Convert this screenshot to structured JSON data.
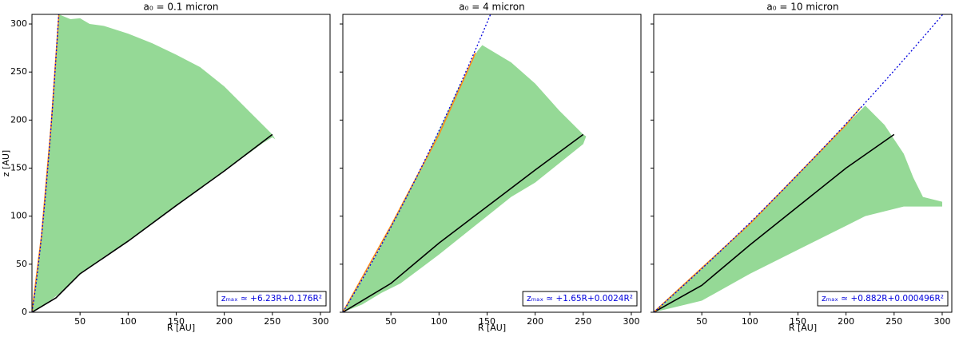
{
  "chart_data": [
    {
      "type": "region",
      "title": "a₀ = 0.1 micron",
      "xlabel": "R [AU]",
      "ylabel": "z [AU]",
      "show_ytick_labels": true,
      "xlim": [
        0,
        310
      ],
      "ylim": [
        0,
        310
      ],
      "xticks": [
        50,
        100,
        150,
        200,
        250,
        300
      ],
      "yticks": [
        0,
        50,
        100,
        150,
        200,
        250,
        300
      ],
      "region": {
        "color": "#95d996",
        "x": [
          0,
          10,
          20,
          28,
          40,
          50,
          60,
          75,
          100,
          125,
          150,
          175,
          200,
          225,
          240,
          250,
          253
        ],
        "upper": [
          0,
          80,
          195,
          310,
          305,
          306,
          300,
          298,
          290,
          280,
          268,
          255,
          235,
          210,
          195,
          185,
          180
        ],
        "lower": [
          0,
          6,
          13,
          19,
          30,
          40,
          47,
          58,
          74,
          93,
          111,
          129,
          147,
          165,
          176,
          182,
          180
        ]
      },
      "lines": [
        {
          "color": "#000000",
          "x": [
            0,
            25,
            50,
            75,
            100,
            150,
            200,
            250
          ],
          "values": [
            0,
            15,
            40,
            57,
            74,
            111,
            147,
            185
          ]
        },
        {
          "color": "#ff8c1a",
          "x": [
            0,
            10,
            20,
            28
          ],
          "values": [
            0,
            80,
            195,
            310
          ]
        }
      ],
      "fit": {
        "label": "zₘₐₓ ≃ +6.23R+0.176R²",
        "coefficients": [
          6.23,
          0.176
        ],
        "color": "#0000dd"
      }
    },
    {
      "type": "region",
      "title": "a₀ = 4 micron",
      "xlabel": "R [AU]",
      "show_ytick_labels": false,
      "xlim": [
        0,
        310
      ],
      "ylim": [
        0,
        310
      ],
      "xticks": [
        50,
        100,
        150,
        200,
        250,
        300
      ],
      "yticks": [
        0,
        50,
        100,
        150,
        200,
        250,
        300
      ],
      "region": {
        "color": "#95d996",
        "x": [
          0,
          20,
          40,
          60,
          80,
          100,
          120,
          140,
          145,
          175,
          200,
          225,
          250,
          253
        ],
        "upper": [
          0,
          34,
          70,
          108,
          147,
          189,
          233,
          272,
          278,
          260,
          238,
          210,
          185,
          183
        ],
        "lower": [
          0,
          8,
          20,
          30,
          45,
          60,
          76,
          92,
          96,
          120,
          135,
          155,
          175,
          183
        ]
      },
      "lines": [
        {
          "color": "#000000",
          "x": [
            0,
            50,
            100,
            150,
            200,
            250
          ],
          "values": [
            0,
            30,
            72,
            110,
            148,
            185
          ]
        },
        {
          "color": "#ff8c1a",
          "x": [
            0,
            50,
            100,
            138
          ],
          "values": [
            0,
            90,
            185,
            270
          ]
        }
      ],
      "fit": {
        "label": "zₘₐₓ ≃ +1.65R+0.0024R²",
        "coefficients": [
          1.65,
          0.0024
        ],
        "color": "#0000dd"
      }
    },
    {
      "type": "region",
      "title": "a₀ = 10 micron",
      "xlabel": "R [AU]",
      "show_ytick_labels": false,
      "xlim": [
        0,
        310
      ],
      "ylim": [
        0,
        310
      ],
      "xticks": [
        50,
        100,
        150,
        200,
        250,
        300
      ],
      "yticks": [
        0,
        50,
        100,
        150,
        200,
        250,
        300
      ],
      "region": {
        "color": "#95d996",
        "x": [
          0,
          50,
          100,
          150,
          200,
          220,
          240,
          260,
          270,
          280,
          300
        ],
        "upper": [
          0,
          45,
          93,
          143,
          195,
          215,
          195,
          165,
          140,
          120,
          115
        ],
        "lower": [
          0,
          12,
          40,
          65,
          90,
          100,
          105,
          110,
          110,
          110,
          110
        ]
      },
      "lines": [
        {
          "color": "#000000",
          "x": [
            0,
            50,
            100,
            150,
            200,
            250
          ],
          "values": [
            0,
            28,
            70,
            110,
            150,
            185
          ]
        },
        {
          "color": "#ff8c1a",
          "x": [
            0,
            100,
            200,
            215
          ],
          "values": [
            0,
            92,
            195,
            213
          ]
        }
      ],
      "fit": {
        "label": "zₘₐₓ ≃ +0.882R+0.000496R²",
        "coefficients": [
          0.882,
          0.000496
        ],
        "color": "#0000dd"
      }
    }
  ]
}
